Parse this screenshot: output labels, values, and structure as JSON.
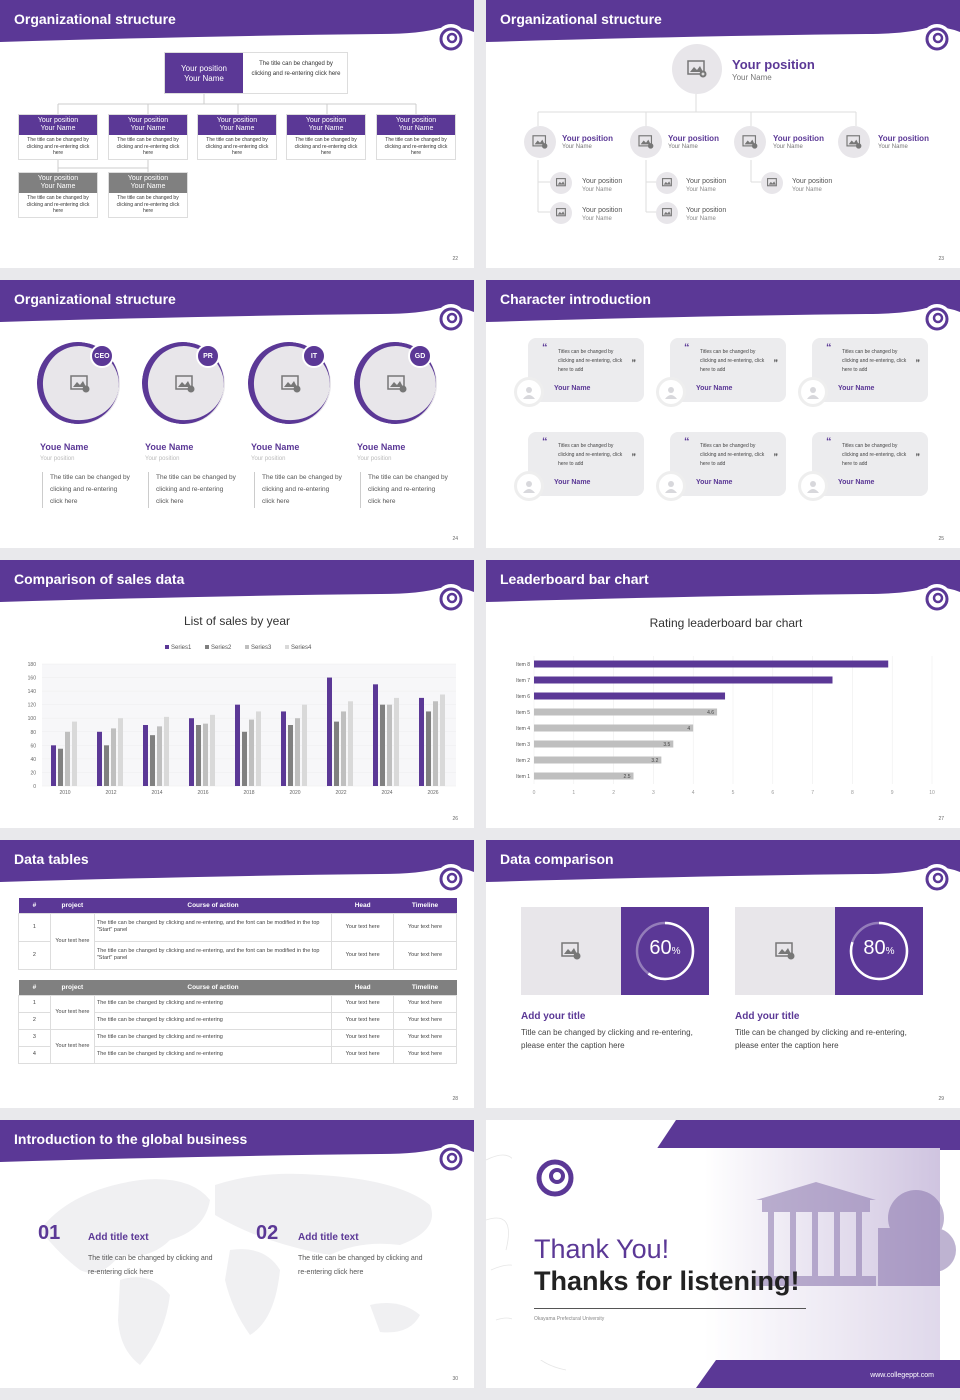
{
  "slides": {
    "s22": {
      "title": "Organizational structure",
      "num": "22",
      "top": {
        "position": "Your position",
        "name": "Your Name",
        "desc": "The title can be changed by clicking and re-entering click here"
      },
      "boxes": [
        {
          "position": "Your position",
          "name": "Your Name",
          "desc": "The title can be changed by clicking and re-entering click here"
        },
        {
          "position": "Your position",
          "name": "Your Name",
          "desc": "The title can be changed by clicking and re-entering click here"
        },
        {
          "position": "Your position",
          "name": "Your Name",
          "desc": "The title can be changed by clicking and re-entering click here"
        },
        {
          "position": "Your position",
          "name": "Your Name",
          "desc": "The title can be changed by clicking and re-entering click here"
        },
        {
          "position": "Your position",
          "name": "Your Name",
          "desc": "The title can be changed by clicking and re-entering click here"
        },
        {
          "position": "Your position",
          "name": "Your Name",
          "desc": "The title can be changed by clicking and re-entering click here"
        },
        {
          "position": "Your position",
          "name": "Your Name",
          "desc": "The title can be changed by clicking and re-entering click here"
        }
      ]
    },
    "s23": {
      "title": "Organizational structure",
      "num": "23",
      "top": {
        "position": "Your position",
        "name": "Your Name"
      },
      "mid": [
        {
          "position": "Your position",
          "name": "Your Name"
        },
        {
          "position": "Your position",
          "name": "Your Name"
        },
        {
          "position": "Your position",
          "name": "Your Name"
        },
        {
          "position": "Your position",
          "name": "Your Name"
        }
      ],
      "sub": [
        {
          "position": "Your position",
          "name": "Your Name"
        },
        {
          "position": "Your position",
          "name": "Your Name"
        },
        {
          "position": "Your position",
          "name": "Your Name"
        },
        {
          "position": "Your position",
          "name": "Your Name"
        },
        {
          "position": "Your position",
          "name": "Your Name"
        }
      ]
    },
    "s24": {
      "title": "Organizational structure",
      "num": "24",
      "people": [
        {
          "badge": "CEO",
          "name": "Youe Name",
          "position": "Your position",
          "desc": "The title can be changed by clicking and re-entering click here"
        },
        {
          "badge": "PR",
          "name": "Youe Name",
          "position": "Your position",
          "desc": "The title can be changed by clicking and re-entering click here"
        },
        {
          "badge": "IT",
          "name": "Youe Name",
          "position": "Your position",
          "desc": "The title can be changed by clicking and re-entering click here"
        },
        {
          "badge": "GD",
          "name": "Youe Name",
          "position": "Your position",
          "desc": "The title can be changed by clicking and re-entering click here"
        }
      ]
    },
    "s25": {
      "title": "Character introduction",
      "num": "25",
      "quote": "Titles can be changed by clicking and re-entering, click here to add",
      "name": "Your Name"
    },
    "s26": {
      "title": "Comparison of sales data",
      "num": "26"
    },
    "s27": {
      "title": "Leaderboard bar chart",
      "num": "27"
    },
    "s28": {
      "title": "Data tables",
      "num": "28",
      "t1": {
        "headers": [
          "#",
          "project",
          "Course of action",
          "Head",
          "Timeline"
        ],
        "rows": [
          [
            "1",
            "Your text here",
            "The title can be changed by clicking and re-entering, and the font can be modified in the top \"Start\" panel",
            "Your text here",
            "Your text here"
          ],
          [
            "2",
            "",
            "The title can be changed by clicking and re-entering, and the font can be modified in the top \"Start\" panel",
            "Your text here",
            "Your text here"
          ]
        ]
      },
      "t2": {
        "headers": [
          "#",
          "project",
          "Course of action",
          "Head",
          "Timeline"
        ],
        "rows": [
          [
            "1",
            "Your text here",
            "The title can be changed by clicking and re-entering",
            "Your text here",
            "Your text here"
          ],
          [
            "2",
            "",
            "The title can be changed by clicking and re-entering",
            "Your text here",
            "Your text here"
          ],
          [
            "3",
            "Your text here",
            "The title can be changed by clicking and re-entering",
            "Your text here",
            "Your text here"
          ],
          [
            "4",
            "",
            "The title can be changed by clicking and re-entering",
            "Your text here",
            "Your text here"
          ]
        ]
      }
    },
    "s29": {
      "title": "Data comparison",
      "num": "29",
      "items": [
        {
          "pct": "60",
          "unit": "%",
          "progress": 0.6,
          "title": "Add your title",
          "desc": "Title can be changed by clicking and re-entering, please enter the caption here"
        },
        {
          "pct": "80",
          "unit": "%",
          "progress": 0.8,
          "title": "Add your title",
          "desc": "Title can be changed by clicking and re-entering, please enter the caption here"
        }
      ]
    },
    "s30": {
      "title": "Introduction to the global business",
      "num": "30",
      "items": [
        {
          "num": "01",
          "title": "Add title text",
          "desc": "The title can be changed by clicking and re-entering click here"
        },
        {
          "num": "02",
          "title": "Add title text",
          "desc": "The title can be changed by clicking and re-entering click here"
        }
      ]
    },
    "s31": {
      "thanks": "Thank You!",
      "thanks2": "Thanks for listening!",
      "school": "Okayama Prefectural University",
      "url": "www.collegeppt.com"
    }
  },
  "colors": {
    "accent": "#5b3896",
    "gray": "#808080",
    "light": "#e8e6ea"
  },
  "chart_data": [
    {
      "type": "bar",
      "title": "List of sales by year",
      "categories": [
        "2010",
        "2012",
        "2014",
        "2016",
        "2018",
        "2020",
        "2022",
        "2024",
        "2026"
      ],
      "ylim": [
        0,
        180
      ],
      "yticks": [
        "0",
        "20",
        "40",
        "60",
        "80",
        "100",
        "120",
        "140",
        "160",
        "180"
      ],
      "series": [
        {
          "name": "Series1",
          "color": "#5b3896",
          "values": [
            60,
            80,
            90,
            100,
            120,
            110,
            160,
            150,
            130
          ]
        },
        {
          "name": "Series2",
          "color": "#808080",
          "values": [
            55,
            60,
            75,
            90,
            80,
            90,
            95,
            120,
            110
          ]
        },
        {
          "name": "Series3",
          "color": "#bfbfbf",
          "values": [
            80,
            85,
            88,
            92,
            98,
            100,
            110,
            120,
            125
          ]
        },
        {
          "name": "Series4",
          "color": "#d9d9d9",
          "values": [
            95,
            100,
            102,
            105,
            110,
            120,
            125,
            130,
            135
          ]
        }
      ],
      "legend": "top"
    },
    {
      "type": "bar",
      "title": "Rating leaderboard bar chart",
      "orientation": "horizontal",
      "categories": [
        "Item 8",
        "Item 7",
        "Item 6",
        "Item 5",
        "Item 4",
        "Item 3",
        "Item 2",
        "Item 1"
      ],
      "values": [
        8.9,
        7.5,
        4.8,
        4.6,
        4,
        3.5,
        3.2,
        2.5
      ],
      "labels": [
        "",
        "",
        "",
        "4.6",
        "4",
        "3.5",
        "3.2",
        "2.5"
      ],
      "highlight": [
        true,
        true,
        true,
        false,
        false,
        false,
        false,
        false
      ],
      "xlim": [
        0,
        10
      ],
      "xticks": [
        "0",
        "1",
        "2",
        "3",
        "4",
        "5",
        "6",
        "7",
        "8",
        "9",
        "10"
      ]
    }
  ]
}
